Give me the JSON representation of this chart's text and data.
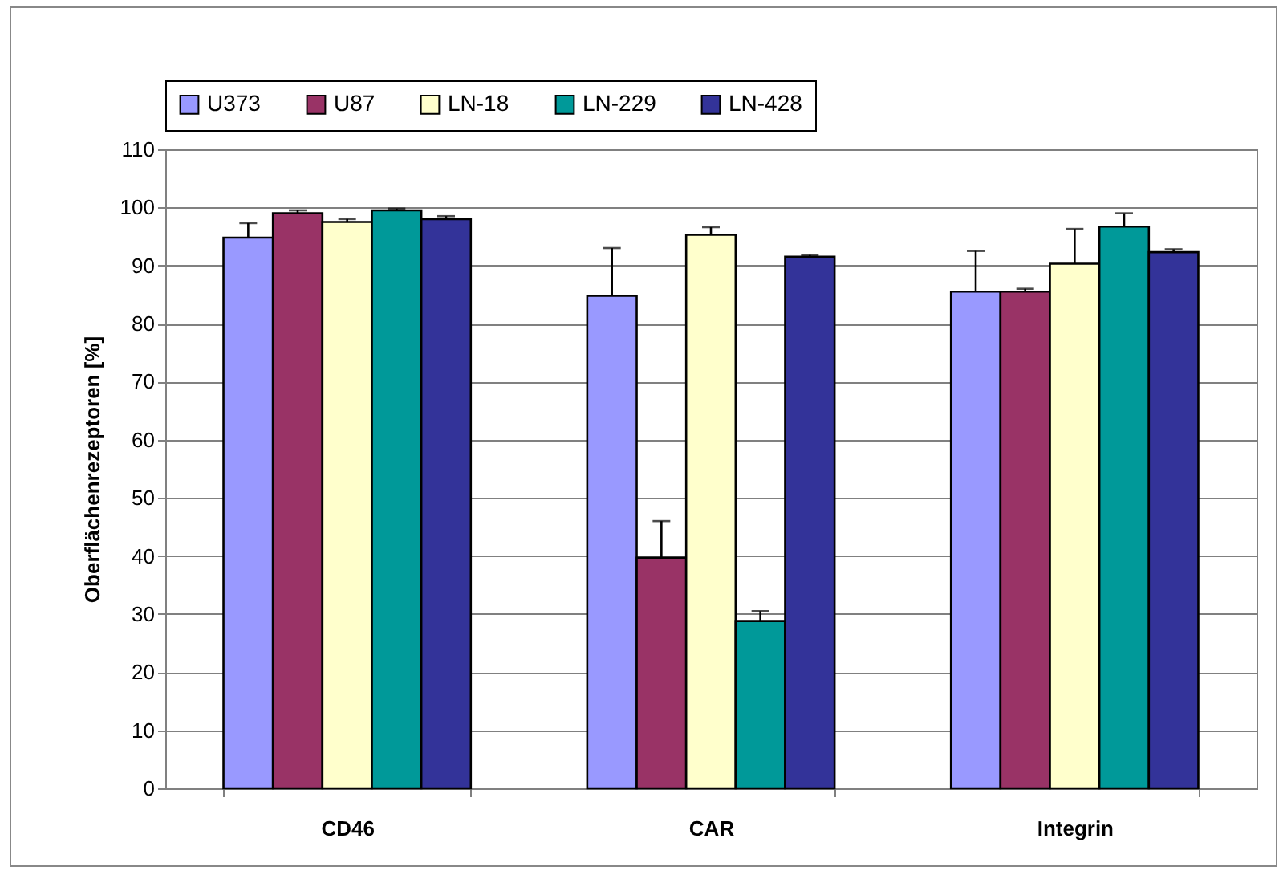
{
  "chart_data": {
    "type": "bar",
    "ylabel": "Oberflächenrezeptoren [%]",
    "categories": [
      "CD46",
      "CAR",
      "Integrin"
    ],
    "series": [
      {
        "name": "U373",
        "color": "#9999ff",
        "values": [
          94.8,
          84.8,
          85.5
        ],
        "errors": [
          [
            94.8,
            97.3
          ],
          [
            84.8,
            93
          ],
          [
            85.5,
            92.5
          ]
        ]
      },
      {
        "name": "U87",
        "color": "#993366",
        "values": [
          99,
          39.7,
          85.5
        ],
        "errors": [
          [
            99,
            99.5
          ],
          [
            39.7,
            46
          ],
          [
            85.5,
            86
          ]
        ]
      },
      {
        "name": "LN-18",
        "color": "#ffffcc",
        "values": [
          97.5,
          95.3,
          90.3
        ],
        "errors": [
          [
            97.5,
            98
          ],
          [
            95.3,
            96.6
          ],
          [
            90.3,
            96.3
          ]
        ]
      },
      {
        "name": "LN-229",
        "color": "#009999",
        "values": [
          99.5,
          28.8,
          96.7
        ],
        "errors": [
          [
            99.5,
            99.8
          ],
          [
            28.8,
            30.5
          ],
          [
            96.7,
            99
          ]
        ]
      },
      {
        "name": "LN-428",
        "color": "#333399",
        "values": [
          98,
          91.5,
          92.3
        ],
        "errors": [
          [
            98,
            98.5
          ],
          [
            91.5,
            91.8
          ],
          [
            92.3,
            92.8
          ]
        ]
      }
    ],
    "ylim": [
      0,
      110
    ],
    "yticks": [
      0,
      10,
      20,
      30,
      40,
      50,
      60,
      70,
      80,
      90,
      100,
      110
    ],
    "grid": "y",
    "legend": "top"
  }
}
